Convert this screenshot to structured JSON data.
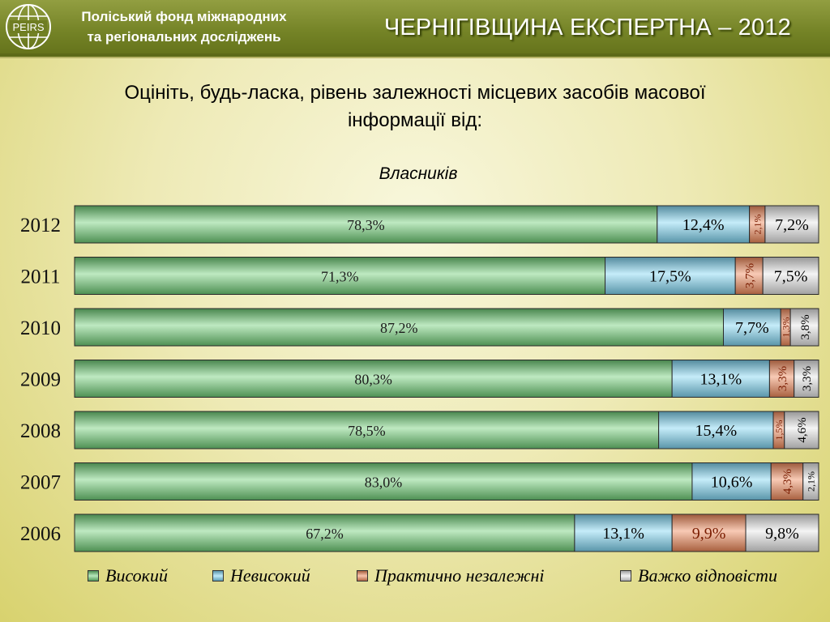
{
  "header": {
    "org_line1": "Поліський фонд міжнародних",
    "org_line2": "та регіональних досліджень",
    "logo_text": "PEIRS",
    "report_title": "ЧЕРНІГІВЩИНА ЕКСПЕРТНА – 2012"
  },
  "question": {
    "line1": "Оцініть, будь-ласка, рівень залежності місцевих засобів масової",
    "line2": "інформації від:"
  },
  "chart_data": {
    "type": "bar",
    "orientation": "horizontal-stacked-100",
    "title": "Власників",
    "categories": [
      "2012",
      "2011",
      "2010",
      "2009",
      "2008",
      "2007",
      "2006"
    ],
    "series": [
      {
        "name": "Високий",
        "color": "#6fce76",
        "values": [
          78.3,
          71.3,
          87.2,
          80.3,
          78.5,
          83.0,
          67.2
        ],
        "labels": [
          "78,3%",
          "71,3%",
          "87,2%",
          "80,3%",
          "78,5%",
          "83,0%",
          "67,2%"
        ]
      },
      {
        "name": "Невисокий",
        "color": "#7fd5f2",
        "values": [
          12.4,
          17.5,
          7.7,
          13.1,
          15.4,
          10.6,
          13.1
        ],
        "labels": [
          "12,4%",
          "17,5%",
          "7,7%",
          "13,1%",
          "15,4%",
          "10,6%",
          "13,1%"
        ]
      },
      {
        "name": "Практично незалежні",
        "color": "#f0895a",
        "values": [
          2.1,
          3.7,
          1.3,
          3.3,
          1.5,
          4.3,
          9.9
        ],
        "labels": [
          "2,1%",
          "3,7%",
          "1,3%",
          "3,3%",
          "1,5%",
          "4,3%",
          "9,9%"
        ]
      },
      {
        "name": "Важко відповісти",
        "color": "#e6e6e6",
        "values": [
          7.2,
          7.5,
          3.8,
          3.3,
          4.6,
          2.1,
          9.8
        ],
        "labels": [
          "7,2%",
          "7,5%",
          "3,8%",
          "3,3%",
          "4,6%",
          "2,1%",
          "9,8%"
        ]
      }
    ],
    "xlim": [
      0,
      100
    ],
    "legend_position": "bottom"
  }
}
